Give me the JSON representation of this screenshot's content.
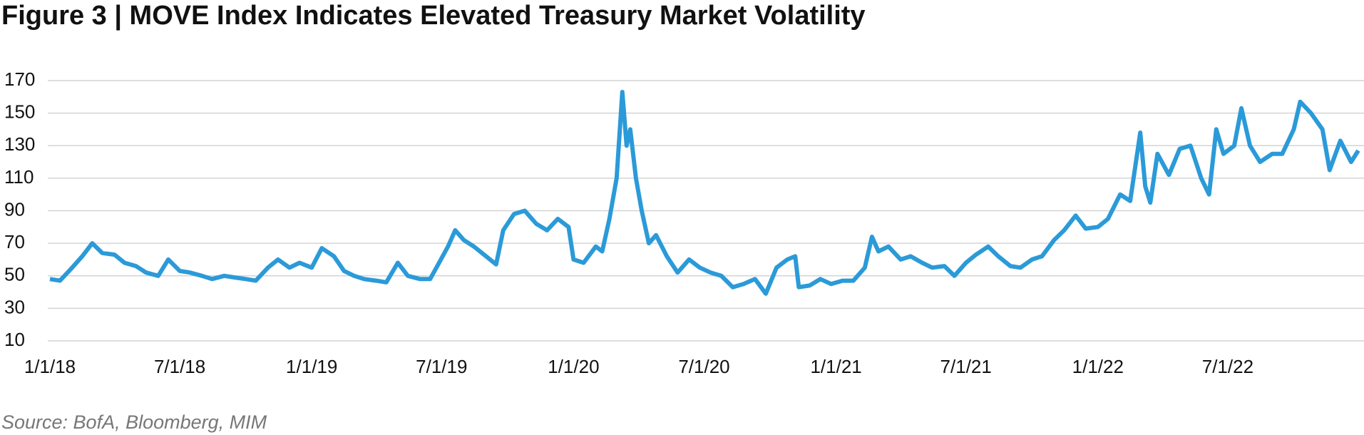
{
  "chart_data": {
    "type": "line",
    "title": "Figure 3 | MOVE Index Indicates Elevated Treasury Market Volatility",
    "source": "Source: BofA, Bloomberg, MIM",
    "x": [
      "1/1/18",
      "1/15/18",
      "2/1/18",
      "2/15/18",
      "3/1/18",
      "3/15/18",
      "4/1/18",
      "4/15/18",
      "5/1/18",
      "5/15/18",
      "6/1/18",
      "6/15/18",
      "7/1/18",
      "7/15/18",
      "8/1/18",
      "8/15/18",
      "9/1/18",
      "9/15/18",
      "10/1/18",
      "10/15/18",
      "11/1/18",
      "11/15/18",
      "12/1/18",
      "12/15/18",
      "1/1/19",
      "1/15/19",
      "2/1/19",
      "2/15/19",
      "3/1/19",
      "3/15/19",
      "4/1/19",
      "4/15/19",
      "5/1/19",
      "5/15/19",
      "6/1/19",
      "6/15/19",
      "6/25/19",
      "7/10/19",
      "7/20/19",
      "8/1/19",
      "8/15/19",
      "9/1/19",
      "9/15/19",
      "9/25/19",
      "10/10/19",
      "10/25/19",
      "11/10/19",
      "11/25/19",
      "12/10/19",
      "12/25/19",
      "1/1/20",
      "1/15/20",
      "2/1/20",
      "2/10/20",
      "2/20/20",
      "3/1/20",
      "3/9/20",
      "3/15/20",
      "3/20/20",
      "3/28/20",
      "4/5/20",
      "4/15/20",
      "4/25/20",
      "5/10/20",
      "5/25/20",
      "6/10/20",
      "6/25/20",
      "7/10/20",
      "7/25/20",
      "8/10/20",
      "8/25/20",
      "9/10/20",
      "9/25/20",
      "10/10/20",
      "10/25/20",
      "11/5/20",
      "11/10/20",
      "11/25/20",
      "12/10/20",
      "12/25/20",
      "1/10/21",
      "1/25/21",
      "2/10/21",
      "2/20/21",
      "3/1/21",
      "3/15/21",
      "4/1/21",
      "4/15/21",
      "5/1/21",
      "5/15/21",
      "6/1/21",
      "6/15/21",
      "7/1/21",
      "7/15/21",
      "8/1/21",
      "8/15/21",
      "9/1/21",
      "9/15/21",
      "10/1/21",
      "10/15/21",
      "11/1/21",
      "11/15/21",
      "12/1/21",
      "12/15/21",
      "1/1/22",
      "1/15/22",
      "2/1/22",
      "2/15/22",
      "3/1/22",
      "3/8/22",
      "3/15/22",
      "3/25/22",
      "4/10/22",
      "4/25/22",
      "5/10/22",
      "5/25/22",
      "6/5/22",
      "6/15/22",
      "6/25/22",
      "7/10/22",
      "7/20/22",
      "8/1/22",
      "8/15/22",
      "9/1/22",
      "9/15/22",
      "10/1/22",
      "10/10/22",
      "10/25/22",
      "11/10/22",
      "11/20/22",
      "12/5/22",
      "12/20/22",
      "12/30/22"
    ],
    "series": [
      {
        "name": "MOVE Index",
        "color": "#2b9ad8",
        "values": [
          48,
          47,
          55,
          62,
          70,
          64,
          63,
          58,
          56,
          52,
          50,
          60,
          53,
          52,
          50,
          48,
          50,
          49,
          48,
          47,
          55,
          60,
          55,
          58,
          55,
          67,
          62,
          53,
          50,
          48,
          47,
          46,
          58,
          50,
          48,
          48,
          56,
          68,
          78,
          72,
          68,
          62,
          57,
          78,
          88,
          90,
          82,
          78,
          85,
          80,
          60,
          58,
          68,
          65,
          85,
          110,
          163,
          130,
          140,
          110,
          90,
          70,
          75,
          62,
          52,
          60,
          55,
          52,
          50,
          43,
          45,
          48,
          39,
          55,
          60,
          62,
          43,
          44,
          48,
          45,
          47,
          47,
          55,
          74,
          65,
          68,
          60,
          62,
          58,
          55,
          56,
          50,
          58,
          63,
          68,
          62,
          56,
          55,
          60,
          62,
          72,
          78,
          87,
          79,
          80,
          85,
          100,
          96,
          138,
          105,
          95,
          125,
          112,
          128,
          130,
          110,
          100,
          140,
          125,
          130,
          153,
          130,
          120,
          125,
          125,
          140,
          157,
          150,
          140,
          115,
          133,
          120,
          127
        ]
      }
    ],
    "xlim": [
      "1/1/18",
      "12/30/22"
    ],
    "xticks": [
      "1/1/18",
      "7/1/18",
      "1/1/19",
      "7/1/19",
      "1/1/20",
      "7/1/20",
      "1/1/21",
      "7/1/21",
      "1/1/22",
      "7/1/22"
    ],
    "ylim": [
      10,
      170
    ],
    "yticks": [
      10,
      30,
      50,
      70,
      90,
      110,
      130,
      150,
      170
    ],
    "grid": true
  }
}
